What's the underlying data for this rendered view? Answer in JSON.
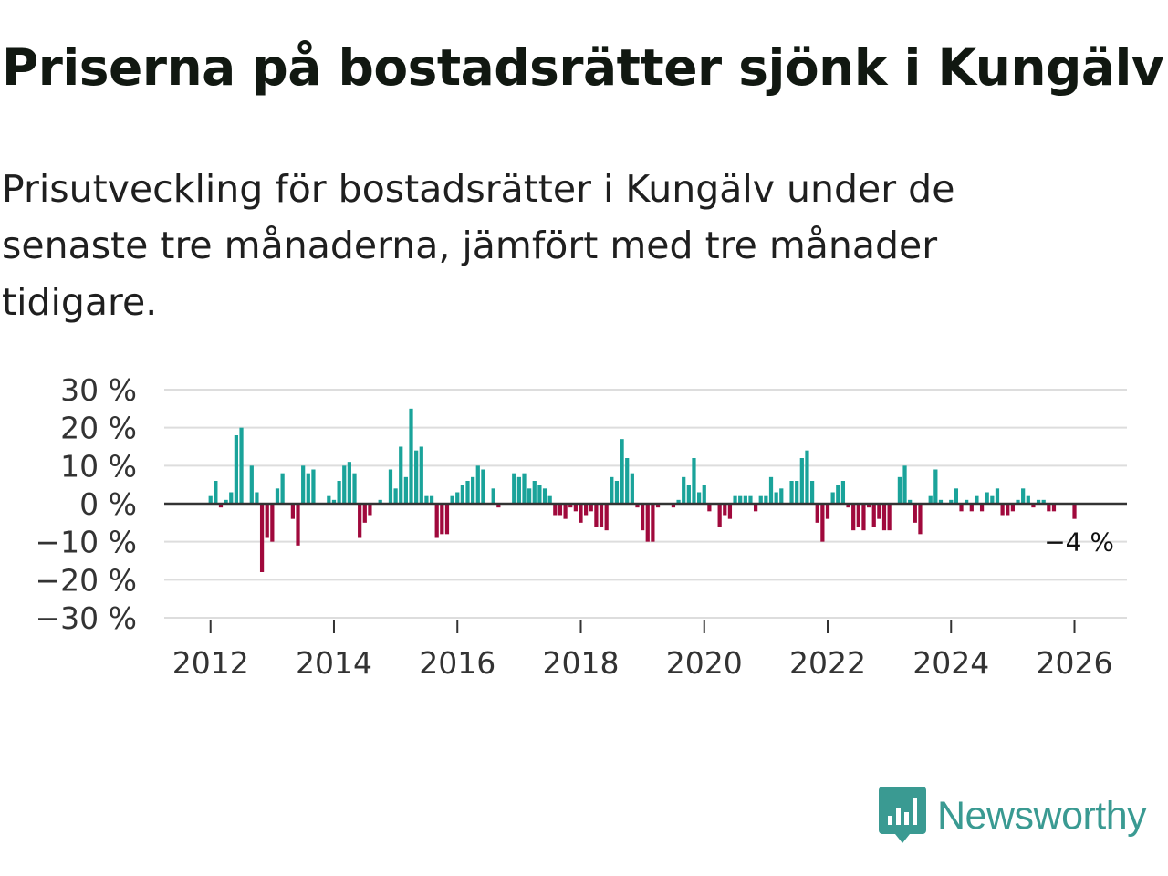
{
  "title": "Priserna på bostadsrätter sjönk i Kungälv",
  "subtitle": "Prisutveckling för bostadsrätter i Kungälv under de senaste tre månaderna, jämfört med tre månader tidigare.",
  "brand": {
    "name": "Newsworthy",
    "color": "#3a9a92"
  },
  "colors": {
    "positive": "#1aa39a",
    "negative": "#a0093c",
    "grid": "#dddddd",
    "zero_line": "#333333"
  },
  "chart_data": {
    "type": "bar",
    "title": "Priserna på bostadsrätter sjönk i Kungälv",
    "xlabel": "",
    "ylabel": "",
    "ylim": [
      -30,
      30
    ],
    "xlim": [
      2011.25,
      2026.85
    ],
    "y_ticks": [
      30,
      20,
      10,
      0,
      -10,
      -20,
      -30
    ],
    "y_tick_labels": [
      "30 %",
      "20 %",
      "10 %",
      "0 %",
      "−10 %",
      "−20 %",
      "−30 %"
    ],
    "x_ticks": [
      2012,
      2014,
      2016,
      2018,
      2020,
      2022,
      2024,
      2026
    ],
    "x_tick_labels": [
      "2012",
      "2014",
      "2016",
      "2018",
      "2020",
      "2022",
      "2024",
      "2026"
    ],
    "start": {
      "year": 2012,
      "month": 1
    },
    "values": [
      2,
      6,
      -1,
      1,
      3,
      18,
      20,
      0,
      10,
      3,
      -18,
      -9,
      -10,
      4,
      8,
      0,
      -4,
      -11,
      10,
      8,
      9,
      0,
      0,
      2,
      1,
      6,
      10,
      11,
      8,
      -9,
      -5,
      -3,
      0,
      1,
      0,
      9,
      4,
      15,
      7,
      25,
      14,
      15,
      2,
      2,
      -9,
      -8,
      -8,
      2,
      3,
      5,
      6,
      7,
      10,
      9,
      0,
      4,
      -1,
      0,
      0,
      8,
      7,
      8,
      4,
      6,
      5,
      4,
      2,
      -3,
      -3,
      -4,
      -1,
      -2,
      -5,
      -3,
      -2,
      -6,
      -6,
      -7,
      7,
      6,
      17,
      12,
      8,
      -1,
      -7,
      -10,
      -10,
      -1,
      0,
      0,
      -1,
      1,
      7,
      5,
      12,
      3,
      5,
      -2,
      0,
      -6,
      -3,
      -4,
      2,
      2,
      2,
      2,
      -2,
      2,
      2,
      7,
      3,
      4,
      0,
      6,
      6,
      12,
      14,
      6,
      -5,
      -10,
      -4,
      3,
      5,
      6,
      -1,
      -7,
      -6,
      -7,
      -1,
      -6,
      -4,
      -7,
      -7,
      0,
      7,
      10,
      1,
      -5,
      -8,
      0,
      2,
      9,
      1,
      0,
      1,
      4,
      -2,
      1,
      -2,
      2,
      -2,
      3,
      2,
      4,
      -3,
      -3,
      -2,
      1,
      4,
      2,
      -1,
      1,
      1,
      -2,
      -2,
      0,
      0,
      0,
      -4
    ],
    "annotations": [
      {
        "text": "−4 %",
        "x": 2026.1,
        "y": -4
      }
    ]
  }
}
